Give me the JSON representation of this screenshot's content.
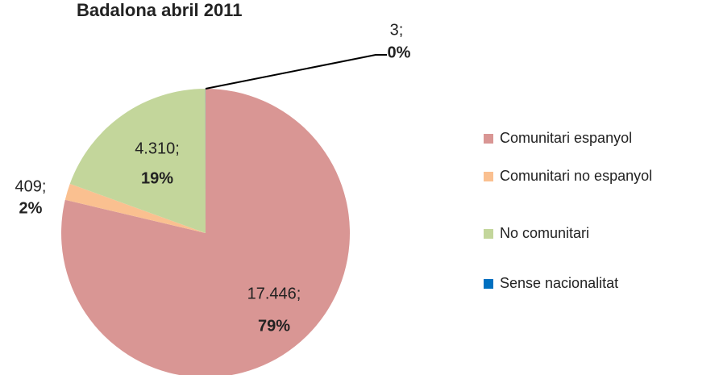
{
  "chart_data": {
    "type": "pie",
    "title": "Badalona abril 2011",
    "categories": [
      "Comunitari espanyol",
      "Comunitari no espanyol",
      "No comunitari",
      "Sense nacionalitat"
    ],
    "values": [
      17446,
      409,
      4310,
      3
    ],
    "value_labels": [
      "17.446;",
      "409;",
      "4.310;",
      "3;"
    ],
    "percents": [
      79,
      2,
      19,
      0
    ],
    "percent_labels": [
      "79%",
      "2%",
      "19%",
      "0%"
    ],
    "colors": [
      "#d99694",
      "#fac090",
      "#c3d69b",
      "#0070c0"
    ],
    "legend": "right"
  }
}
